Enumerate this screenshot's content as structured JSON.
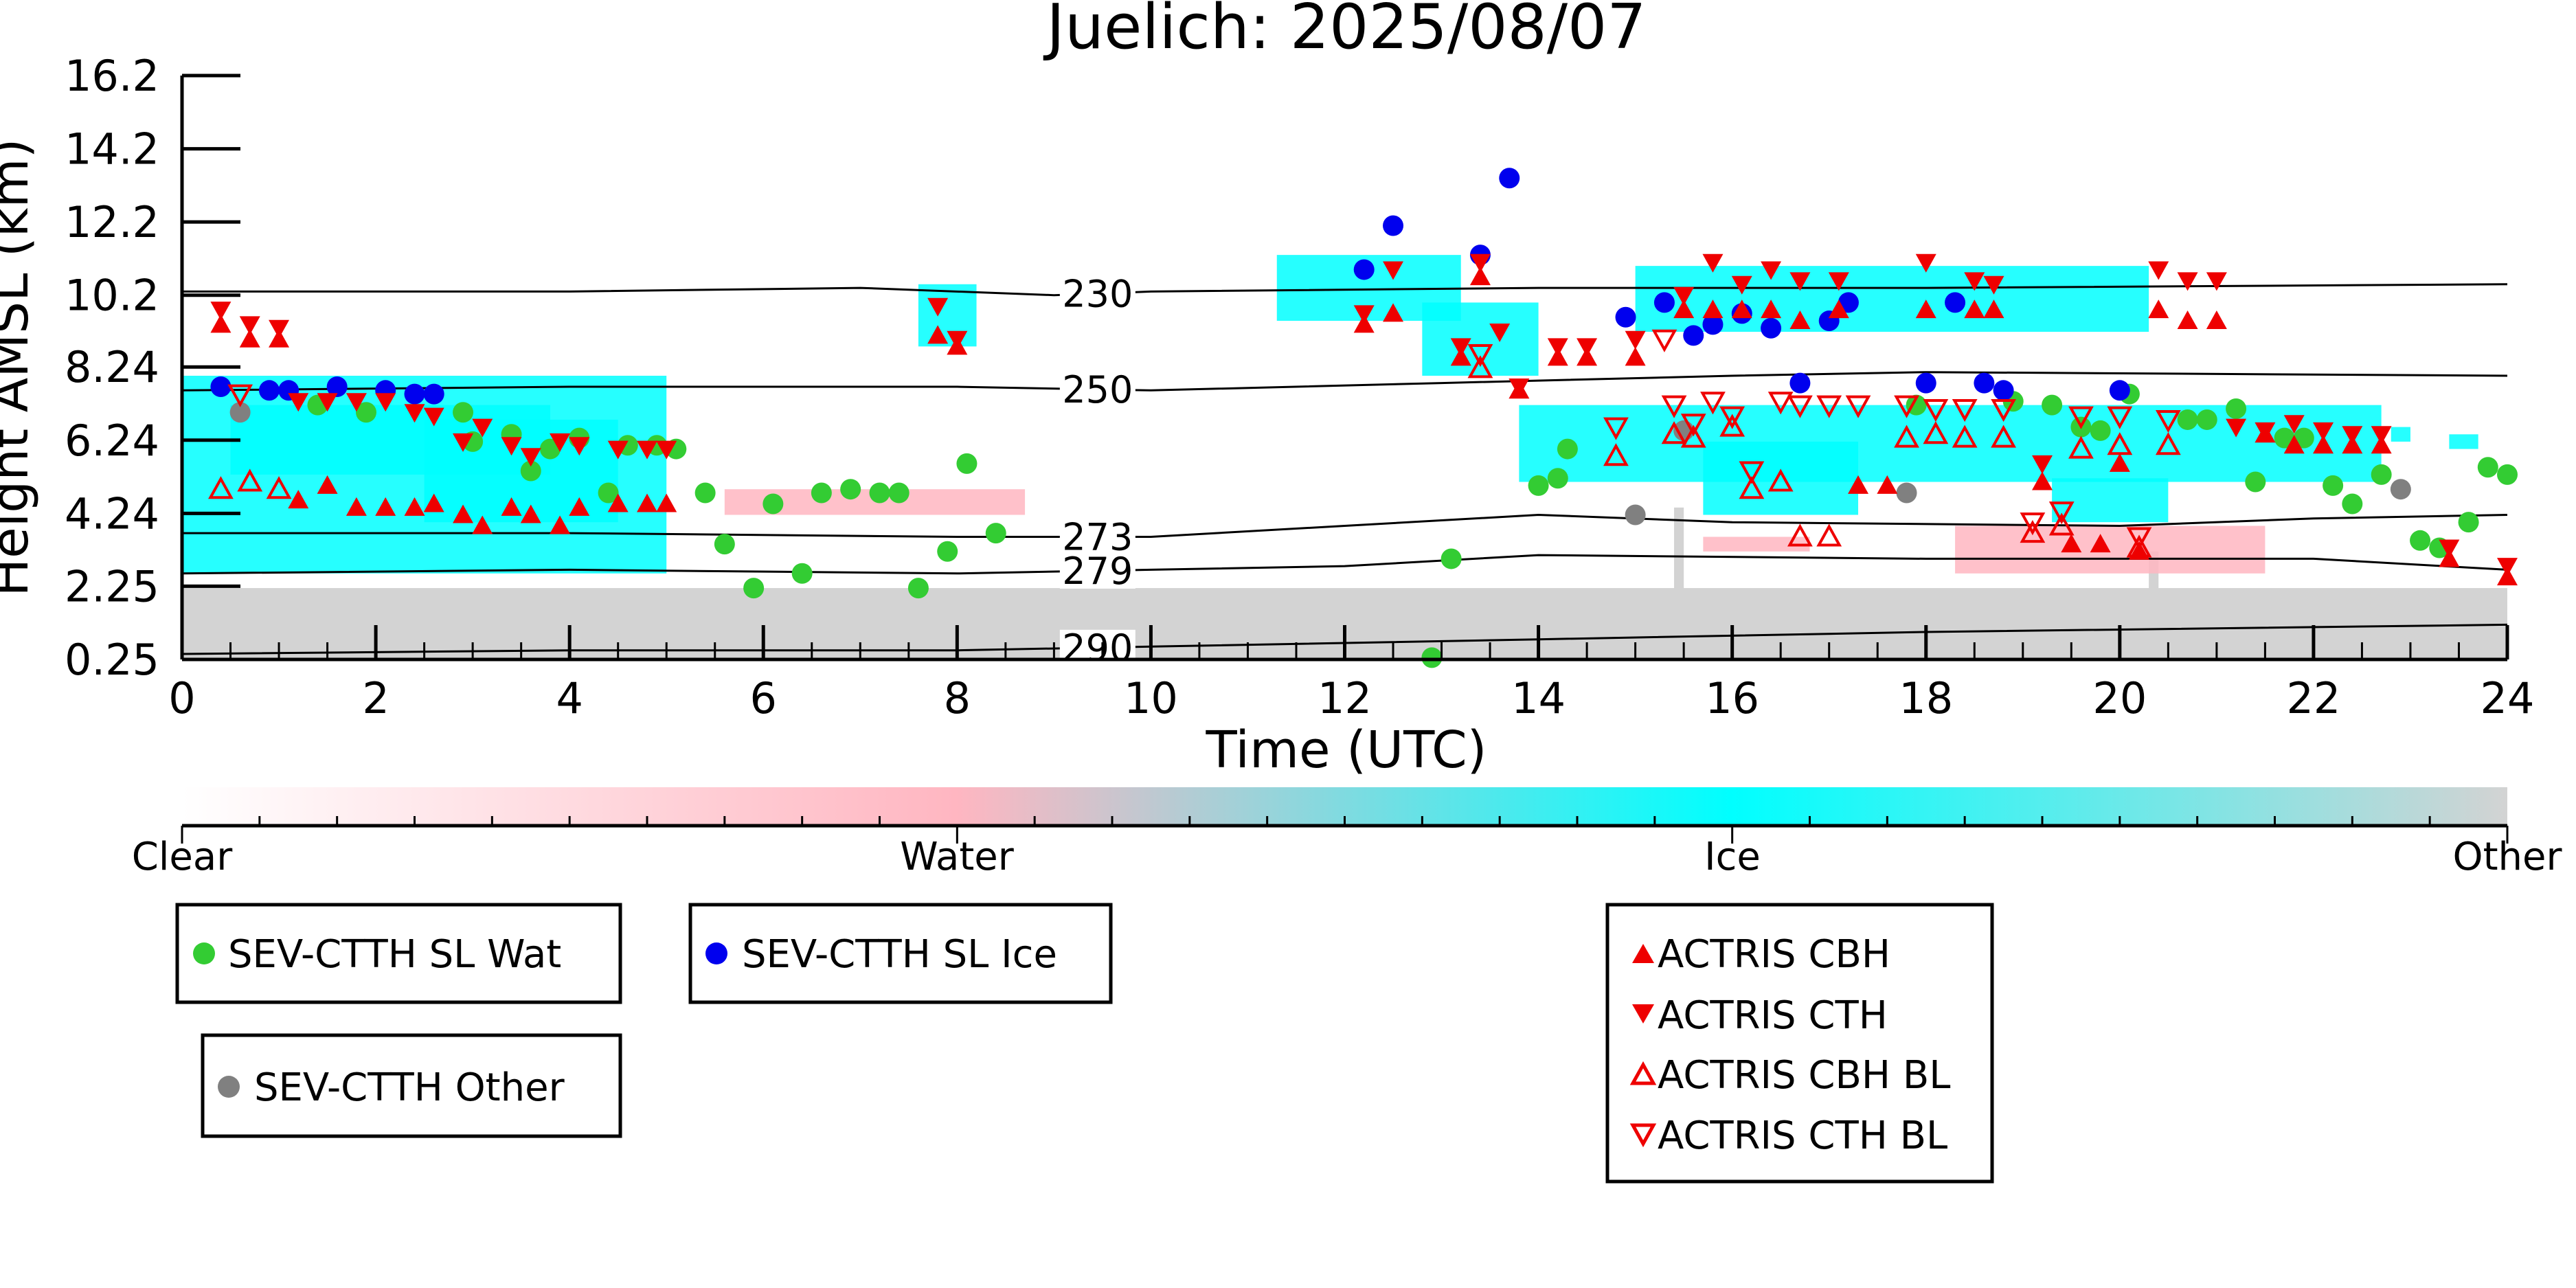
{
  "chart_data": {
    "type": "scatter",
    "title": "Juelich: 2025/08/07",
    "xlabel": "Time (UTC)",
    "ylabel": "Height AMSL (km)",
    "xlim": [
      0,
      24
    ],
    "ylim": [
      0.25,
      16.2
    ],
    "x_ticks": [
      "0",
      "2",
      "4",
      "6",
      "8",
      "10",
      "12",
      "14",
      "16",
      "18",
      "20",
      "22",
      "24"
    ],
    "y_ticks": [
      "0.25",
      "2.25",
      "4.24",
      "6.24",
      "8.24",
      "10.2",
      "12.2",
      "14.2",
      "16.2"
    ],
    "grid": false,
    "colors": {
      "clear": "#ffffff",
      "water": "#ffb6c1",
      "ice": "#00ffff",
      "other": "#d3d3d3",
      "sev_water": "#33cc33",
      "sev_ice": "#0000ee",
      "sev_other": "#808080",
      "actris": "#ee0000",
      "contour": "#000000"
    },
    "colorbar": {
      "labels": [
        "Clear",
        "Water",
        "Ice",
        "Other"
      ],
      "stops": [
        "#ffffff",
        "#ffb6c1",
        "#00ffff",
        "#d3d3d3"
      ]
    },
    "temperature_contours": [
      {
        "label": "230",
        "points": [
          [
            0,
            10.3
          ],
          [
            4,
            10.3
          ],
          [
            7,
            10.4
          ],
          [
            9,
            10.2
          ],
          [
            10,
            10.3
          ],
          [
            14,
            10.4
          ],
          [
            18,
            10.4
          ],
          [
            24,
            10.5
          ]
        ]
      },
      {
        "label": "250",
        "points": [
          [
            0,
            7.6
          ],
          [
            4,
            7.7
          ],
          [
            8,
            7.7
          ],
          [
            10,
            7.6
          ],
          [
            13,
            7.8
          ],
          [
            16,
            8.0
          ],
          [
            18,
            8.1
          ],
          [
            24,
            8.0
          ]
        ]
      },
      {
        "label": "273",
        "points": [
          [
            0,
            3.7
          ],
          [
            4,
            3.7
          ],
          [
            8,
            3.6
          ],
          [
            10,
            3.6
          ],
          [
            12,
            3.9
          ],
          [
            14,
            4.2
          ],
          [
            16,
            4.0
          ],
          [
            20,
            3.9
          ],
          [
            22,
            4.1
          ],
          [
            24,
            4.2
          ]
        ]
      },
      {
        "label": "279",
        "points": [
          [
            0,
            2.6
          ],
          [
            4,
            2.7
          ],
          [
            8,
            2.6
          ],
          [
            10,
            2.7
          ],
          [
            12,
            2.8
          ],
          [
            14,
            3.1
          ],
          [
            18,
            3.0
          ],
          [
            22,
            3.0
          ],
          [
            24,
            2.7
          ]
        ]
      },
      {
        "label": "290",
        "points": [
          [
            0,
            0.4
          ],
          [
            4,
            0.5
          ],
          [
            8,
            0.5
          ],
          [
            10,
            0.6
          ],
          [
            14,
            0.8
          ],
          [
            18,
            1.0
          ],
          [
            24,
            1.2
          ]
        ]
      }
    ],
    "cloud_mask": {
      "ice": [
        [
          0,
          5,
          2.6,
          8.0
        ],
        [
          0.5,
          3.8,
          5.3,
          7.2
        ],
        [
          2.5,
          4.5,
          4,
          6.8
        ],
        [
          7.6,
          8.2,
          8.8,
          10.5
        ],
        [
          11.3,
          13.2,
          9.5,
          11.3
        ],
        [
          12.8,
          14,
          8.0,
          10.0
        ],
        [
          15,
          20.3,
          9.2,
          11.0
        ],
        [
          13.8,
          22.7,
          5.1,
          7.2
        ],
        [
          15.7,
          17.3,
          4.2,
          6.2
        ],
        [
          19.3,
          20.5,
          4.0,
          5.2
        ],
        [
          22.8,
          23,
          6.2,
          6.6
        ],
        [
          23.4,
          23.7,
          6.0,
          6.4
        ]
      ],
      "water": [
        [
          5.6,
          8.7,
          4.2,
          4.9
        ],
        [
          18.3,
          21.5,
          2.6,
          3.9
        ],
        [
          15.7,
          16.8,
          3.2,
          3.6
        ]
      ],
      "other": [
        [
          0,
          24,
          0.25,
          2.2
        ],
        [
          15.4,
          15.5,
          2.0,
          4.4
        ],
        [
          20.3,
          20.4,
          2.0,
          3.2
        ]
      ]
    },
    "series": [
      {
        "name": "SEV-CTTH SL Wat",
        "marker": "circle",
        "color": "#33cc33",
        "points": [
          [
            1.4,
            7.2
          ],
          [
            1.9,
            7.0
          ],
          [
            2.9,
            7.0
          ],
          [
            3.0,
            6.2
          ],
          [
            3.4,
            6.4
          ],
          [
            3.6,
            5.4
          ],
          [
            3.8,
            6.0
          ],
          [
            4.1,
            6.3
          ],
          [
            4.4,
            4.8
          ],
          [
            4.6,
            6.1
          ],
          [
            4.9,
            6.1
          ],
          [
            5.1,
            6.0
          ],
          [
            5.4,
            4.8
          ],
          [
            5.6,
            3.4
          ],
          [
            5.9,
            2.2
          ],
          [
            6.1,
            4.5
          ],
          [
            6.4,
            2.6
          ],
          [
            6.6,
            4.8
          ],
          [
            6.9,
            4.9
          ],
          [
            7.2,
            4.8
          ],
          [
            7.4,
            4.8
          ],
          [
            7.6,
            2.2
          ],
          [
            7.9,
            3.2
          ],
          [
            8.1,
            5.6
          ],
          [
            8.4,
            3.7
          ],
          [
            12.9,
            0.3
          ],
          [
            13.1,
            3.0
          ],
          [
            14.0,
            5.0
          ],
          [
            14.2,
            5.2
          ],
          [
            14.3,
            6.0
          ],
          [
            17.9,
            7.2
          ],
          [
            18.9,
            7.3
          ],
          [
            19.3,
            7.2
          ],
          [
            19.6,
            6.6
          ],
          [
            19.8,
            6.5
          ],
          [
            20.1,
            7.5
          ],
          [
            20.7,
            6.8
          ],
          [
            20.9,
            6.8
          ],
          [
            21.2,
            7.1
          ],
          [
            21.4,
            5.1
          ],
          [
            21.7,
            6.3
          ],
          [
            21.9,
            6.3
          ],
          [
            22.2,
            5.0
          ],
          [
            22.4,
            4.5
          ],
          [
            22.7,
            5.3
          ],
          [
            23.1,
            3.5
          ],
          [
            23.3,
            3.3
          ],
          [
            23.6,
            4.0
          ],
          [
            23.8,
            5.5
          ],
          [
            24.0,
            5.3
          ]
        ]
      },
      {
        "name": "SEV-CTTH SL Ice",
        "marker": "circle",
        "color": "#0000ee",
        "points": [
          [
            0.4,
            7.7
          ],
          [
            0.9,
            7.6
          ],
          [
            1.1,
            7.6
          ],
          [
            1.6,
            7.7
          ],
          [
            2.1,
            7.6
          ],
          [
            2.4,
            7.5
          ],
          [
            2.6,
            7.5
          ],
          [
            12.2,
            10.9
          ],
          [
            12.5,
            12.1
          ],
          [
            13.4,
            11.3
          ],
          [
            13.7,
            13.4
          ],
          [
            14.9,
            9.6
          ],
          [
            15.3,
            10.0
          ],
          [
            15.6,
            9.1
          ],
          [
            15.8,
            9.4
          ],
          [
            16.1,
            9.7
          ],
          [
            16.4,
            9.3
          ],
          [
            16.7,
            7.8
          ],
          [
            17.0,
            9.5
          ],
          [
            17.2,
            10.0
          ],
          [
            18.0,
            7.8
          ],
          [
            18.3,
            10.0
          ],
          [
            18.6,
            7.8
          ],
          [
            18.8,
            7.6
          ],
          [
            20.0,
            7.6
          ]
        ]
      },
      {
        "name": "SEV-CTTH Other",
        "marker": "circle",
        "color": "#808080",
        "points": [
          [
            0.6,
            7.0
          ],
          [
            15.0,
            4.2
          ],
          [
            15.5,
            6.5
          ],
          [
            17.8,
            4.8
          ],
          [
            22.9,
            4.9
          ]
        ]
      },
      {
        "name": "ACTRIS CBH",
        "marker": "triangle-up",
        "color": "#ee0000",
        "filled": true,
        "points": [
          [
            0.4,
            9.4
          ],
          [
            0.7,
            9.0
          ],
          [
            1.0,
            9.0
          ],
          [
            1.2,
            4.6
          ],
          [
            1.5,
            5.0
          ],
          [
            1.8,
            4.4
          ],
          [
            2.1,
            4.4
          ],
          [
            2.4,
            4.4
          ],
          [
            2.6,
            4.5
          ],
          [
            2.9,
            4.2
          ],
          [
            3.1,
            3.9
          ],
          [
            3.4,
            4.4
          ],
          [
            3.6,
            4.2
          ],
          [
            3.9,
            3.9
          ],
          [
            4.1,
            4.4
          ],
          [
            4.5,
            4.5
          ],
          [
            4.8,
            4.5
          ],
          [
            5.0,
            4.5
          ],
          [
            7.8,
            9.1
          ],
          [
            8.0,
            8.8
          ],
          [
            12.2,
            9.4
          ],
          [
            12.5,
            9.7
          ],
          [
            13.2,
            8.5
          ],
          [
            13.4,
            10.7
          ],
          [
            13.8,
            7.6
          ],
          [
            14.2,
            8.5
          ],
          [
            14.5,
            8.5
          ],
          [
            15.0,
            8.5
          ],
          [
            15.5,
            9.8
          ],
          [
            15.8,
            9.8
          ],
          [
            16.1,
            9.8
          ],
          [
            16.4,
            9.8
          ],
          [
            16.7,
            9.5
          ],
          [
            17.1,
            9.8
          ],
          [
            17.3,
            5.0
          ],
          [
            17.6,
            5.0
          ],
          [
            18.0,
            9.8
          ],
          [
            18.5,
            9.8
          ],
          [
            18.7,
            9.8
          ],
          [
            19.2,
            5.1
          ],
          [
            19.5,
            3.4
          ],
          [
            19.8,
            3.4
          ],
          [
            20.0,
            5.6
          ],
          [
            20.2,
            3.2
          ],
          [
            20.4,
            9.8
          ],
          [
            20.7,
            9.5
          ],
          [
            21.0,
            9.5
          ],
          [
            21.5,
            6.4
          ],
          [
            21.8,
            6.1
          ],
          [
            22.1,
            6.1
          ],
          [
            22.4,
            6.1
          ],
          [
            22.7,
            6.1
          ],
          [
            23.4,
            3.0
          ],
          [
            24.0,
            2.5
          ]
        ]
      },
      {
        "name": "ACTRIS CTH",
        "marker": "triangle-down",
        "color": "#ee0000",
        "filled": true,
        "points": [
          [
            0.4,
            9.8
          ],
          [
            0.7,
            9.4
          ],
          [
            1.0,
            9.3
          ],
          [
            1.2,
            7.3
          ],
          [
            1.5,
            7.3
          ],
          [
            1.8,
            7.3
          ],
          [
            2.1,
            7.3
          ],
          [
            2.4,
            7.0
          ],
          [
            2.6,
            6.9
          ],
          [
            2.9,
            6.2
          ],
          [
            3.1,
            6.6
          ],
          [
            3.4,
            6.1
          ],
          [
            3.6,
            5.8
          ],
          [
            3.9,
            6.2
          ],
          [
            4.1,
            6.1
          ],
          [
            4.5,
            6.0
          ],
          [
            4.8,
            6.0
          ],
          [
            5.0,
            6.0
          ],
          [
            7.8,
            9.9
          ],
          [
            8.0,
            9.0
          ],
          [
            12.2,
            9.7
          ],
          [
            12.5,
            10.9
          ],
          [
            13.2,
            8.8
          ],
          [
            13.4,
            11.1
          ],
          [
            13.6,
            9.2
          ],
          [
            13.8,
            7.7
          ],
          [
            14.2,
            8.8
          ],
          [
            14.5,
            8.8
          ],
          [
            15.0,
            9.0
          ],
          [
            15.5,
            10.2
          ],
          [
            15.8,
            11.1
          ],
          [
            16.1,
            10.5
          ],
          [
            16.4,
            10.9
          ],
          [
            16.7,
            10.6
          ],
          [
            17.1,
            10.6
          ],
          [
            18.0,
            11.1
          ],
          [
            18.5,
            10.6
          ],
          [
            18.7,
            10.5
          ],
          [
            19.2,
            5.6
          ],
          [
            20.4,
            10.9
          ],
          [
            20.7,
            10.6
          ],
          [
            21.0,
            10.6
          ],
          [
            21.2,
            6.6
          ],
          [
            21.5,
            6.5
          ],
          [
            21.8,
            6.7
          ],
          [
            22.1,
            6.5
          ],
          [
            22.4,
            6.4
          ],
          [
            22.7,
            6.4
          ],
          [
            23.4,
            3.3
          ],
          [
            24.0,
            2.8
          ]
        ]
      },
      {
        "name": "ACTRIS CBH BL",
        "marker": "triangle-up",
        "color": "#ee0000",
        "filled": false,
        "points": [
          [
            0.4,
            4.9
          ],
          [
            0.7,
            5.1
          ],
          [
            1.0,
            4.9
          ],
          [
            13.4,
            8.2
          ],
          [
            14.8,
            5.8
          ],
          [
            15.4,
            6.4
          ],
          [
            15.6,
            6.3
          ],
          [
            16.0,
            6.6
          ],
          [
            16.2,
            4.9
          ],
          [
            16.5,
            5.1
          ],
          [
            16.7,
            3.6
          ],
          [
            17.0,
            3.6
          ],
          [
            17.8,
            6.3
          ],
          [
            18.1,
            6.4
          ],
          [
            18.4,
            6.3
          ],
          [
            18.8,
            6.3
          ],
          [
            19.1,
            3.7
          ],
          [
            19.4,
            3.9
          ],
          [
            19.6,
            6.0
          ],
          [
            20.0,
            6.1
          ],
          [
            20.2,
            3.3
          ],
          [
            20.5,
            6.1
          ]
        ]
      },
      {
        "name": "ACTRIS CTH BL",
        "marker": "triangle-down",
        "color": "#ee0000",
        "filled": false,
        "points": [
          [
            0.6,
            7.5
          ],
          [
            13.4,
            8.6
          ],
          [
            14.8,
            6.6
          ],
          [
            15.4,
            7.2
          ],
          [
            15.6,
            6.7
          ],
          [
            15.8,
            7.3
          ],
          [
            16.0,
            6.9
          ],
          [
            16.2,
            5.4
          ],
          [
            16.5,
            7.3
          ],
          [
            16.7,
            7.2
          ],
          [
            17.0,
            7.2
          ],
          [
            17.3,
            7.2
          ],
          [
            17.8,
            7.2
          ],
          [
            18.1,
            7.1
          ],
          [
            18.4,
            7.1
          ],
          [
            18.8,
            7.1
          ],
          [
            19.1,
            4.0
          ],
          [
            19.4,
            4.3
          ],
          [
            19.6,
            6.9
          ],
          [
            20.0,
            6.9
          ],
          [
            20.2,
            3.6
          ],
          [
            20.5,
            6.8
          ],
          [
            15.3,
            9.0
          ]
        ]
      }
    ]
  }
}
